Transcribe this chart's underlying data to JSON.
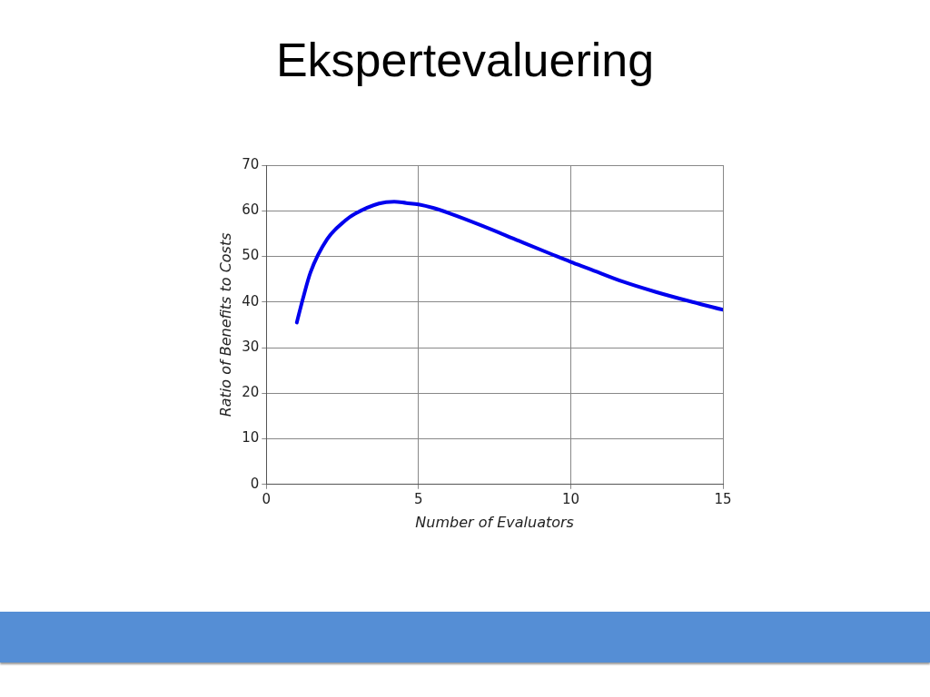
{
  "chart_data": {
    "type": "line",
    "title": "Ekspertevaluering",
    "xlabel": "Number of Evaluators",
    "ylabel": "Ratio of Benefits to Costs",
    "x": [
      1,
      1.2,
      1.45,
      2,
      2.6,
      2.9,
      3.7,
      4.2,
      4.6,
      5,
      5.5,
      6,
      7.1,
      8.3,
      9.4,
      10,
      10.6,
      11.7,
      12.8,
      14,
      15
    ],
    "series": [
      {
        "color": "#0000ee",
        "values": [
          35.5,
          40.7,
          46.5,
          53.8,
          57.9,
          59.3,
          61.6,
          62,
          61.7,
          61.4,
          60.6,
          59.5,
          56.7,
          53.4,
          50.4,
          48.8,
          47.3,
          44.5,
          42.2,
          40,
          38.3
        ]
      }
    ],
    "xlim": [
      0,
      15
    ],
    "xticks": [
      0,
      5,
      10,
      15
    ],
    "ylim": [
      0,
      70
    ],
    "yticks": [
      0,
      10,
      20,
      30,
      40,
      50,
      60,
      70
    ],
    "grid": true,
    "legend": false,
    "marker": "none",
    "line_style": "solid"
  }
}
